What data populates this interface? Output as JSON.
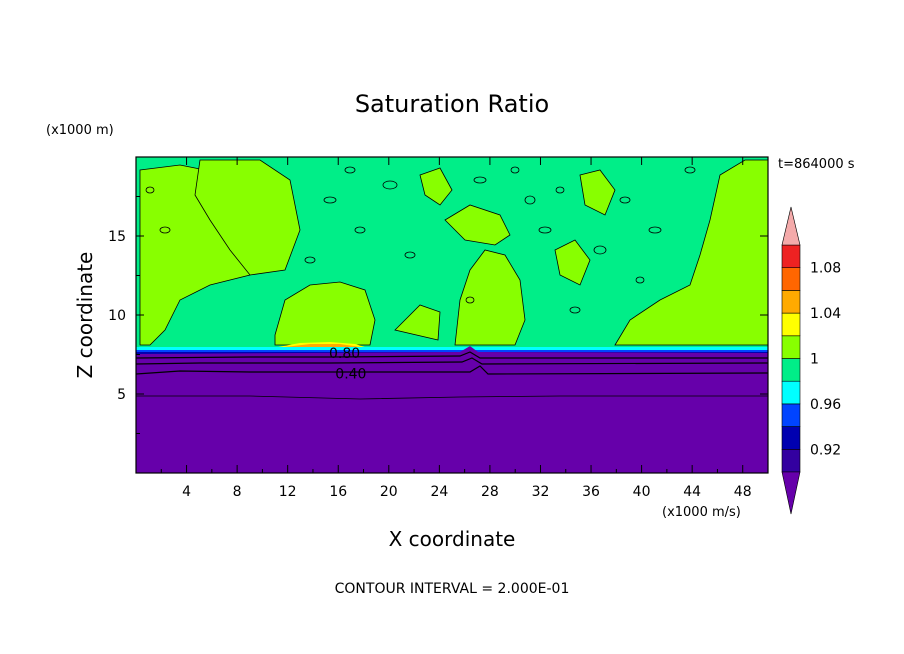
{
  "chart_data": {
    "type": "heatmap",
    "title": "Saturation Ratio",
    "xlabel": "X coordinate",
    "ylabel": "Z coordinate",
    "x_unit": "(x1000 m/s)",
    "y_unit": "(x1000 m)",
    "time_label": "t=864000 s",
    "footer": "CONTOUR INTERVAL = 2.000E-01",
    "xlim": [
      0,
      50
    ],
    "ylim": [
      0,
      20
    ],
    "x_ticks": [
      4,
      8,
      12,
      16,
      20,
      24,
      28,
      32,
      36,
      40,
      44,
      48
    ],
    "y_ticks": [
      5,
      10,
      15
    ],
    "contour_labels": [
      {
        "text": "0.80",
        "x": 16.5,
        "z": 7.6
      },
      {
        "text": "0.40",
        "x": 17.0,
        "z": 6.3
      }
    ],
    "regions": {
      "upper_fill_value": 1,
      "layer_top_z": 7.7,
      "lower_fill_value": 0.9,
      "supersaturated_patch": {
        "x": [
          11,
          18
        ],
        "z": 7.9,
        "max_level": 1.04
      }
    },
    "colorbar": {
      "labels": [
        "1.08",
        "1.04",
        "1",
        "0.96",
        "0.92"
      ],
      "levels": [
        0.9,
        0.92,
        0.94,
        0.96,
        0.98,
        1.0,
        1.02,
        1.04,
        1.06,
        1.08,
        1.1
      ],
      "colors": [
        "#3300a0",
        "#0000b0",
        "#0044ff",
        "#00ffff",
        "#00ee88",
        "#88ff00",
        "#ffff00",
        "#ffaa00",
        "#ff6600",
        "#ee2222",
        "#f4aaaa"
      ],
      "under_color": "#6600aa"
    }
  }
}
